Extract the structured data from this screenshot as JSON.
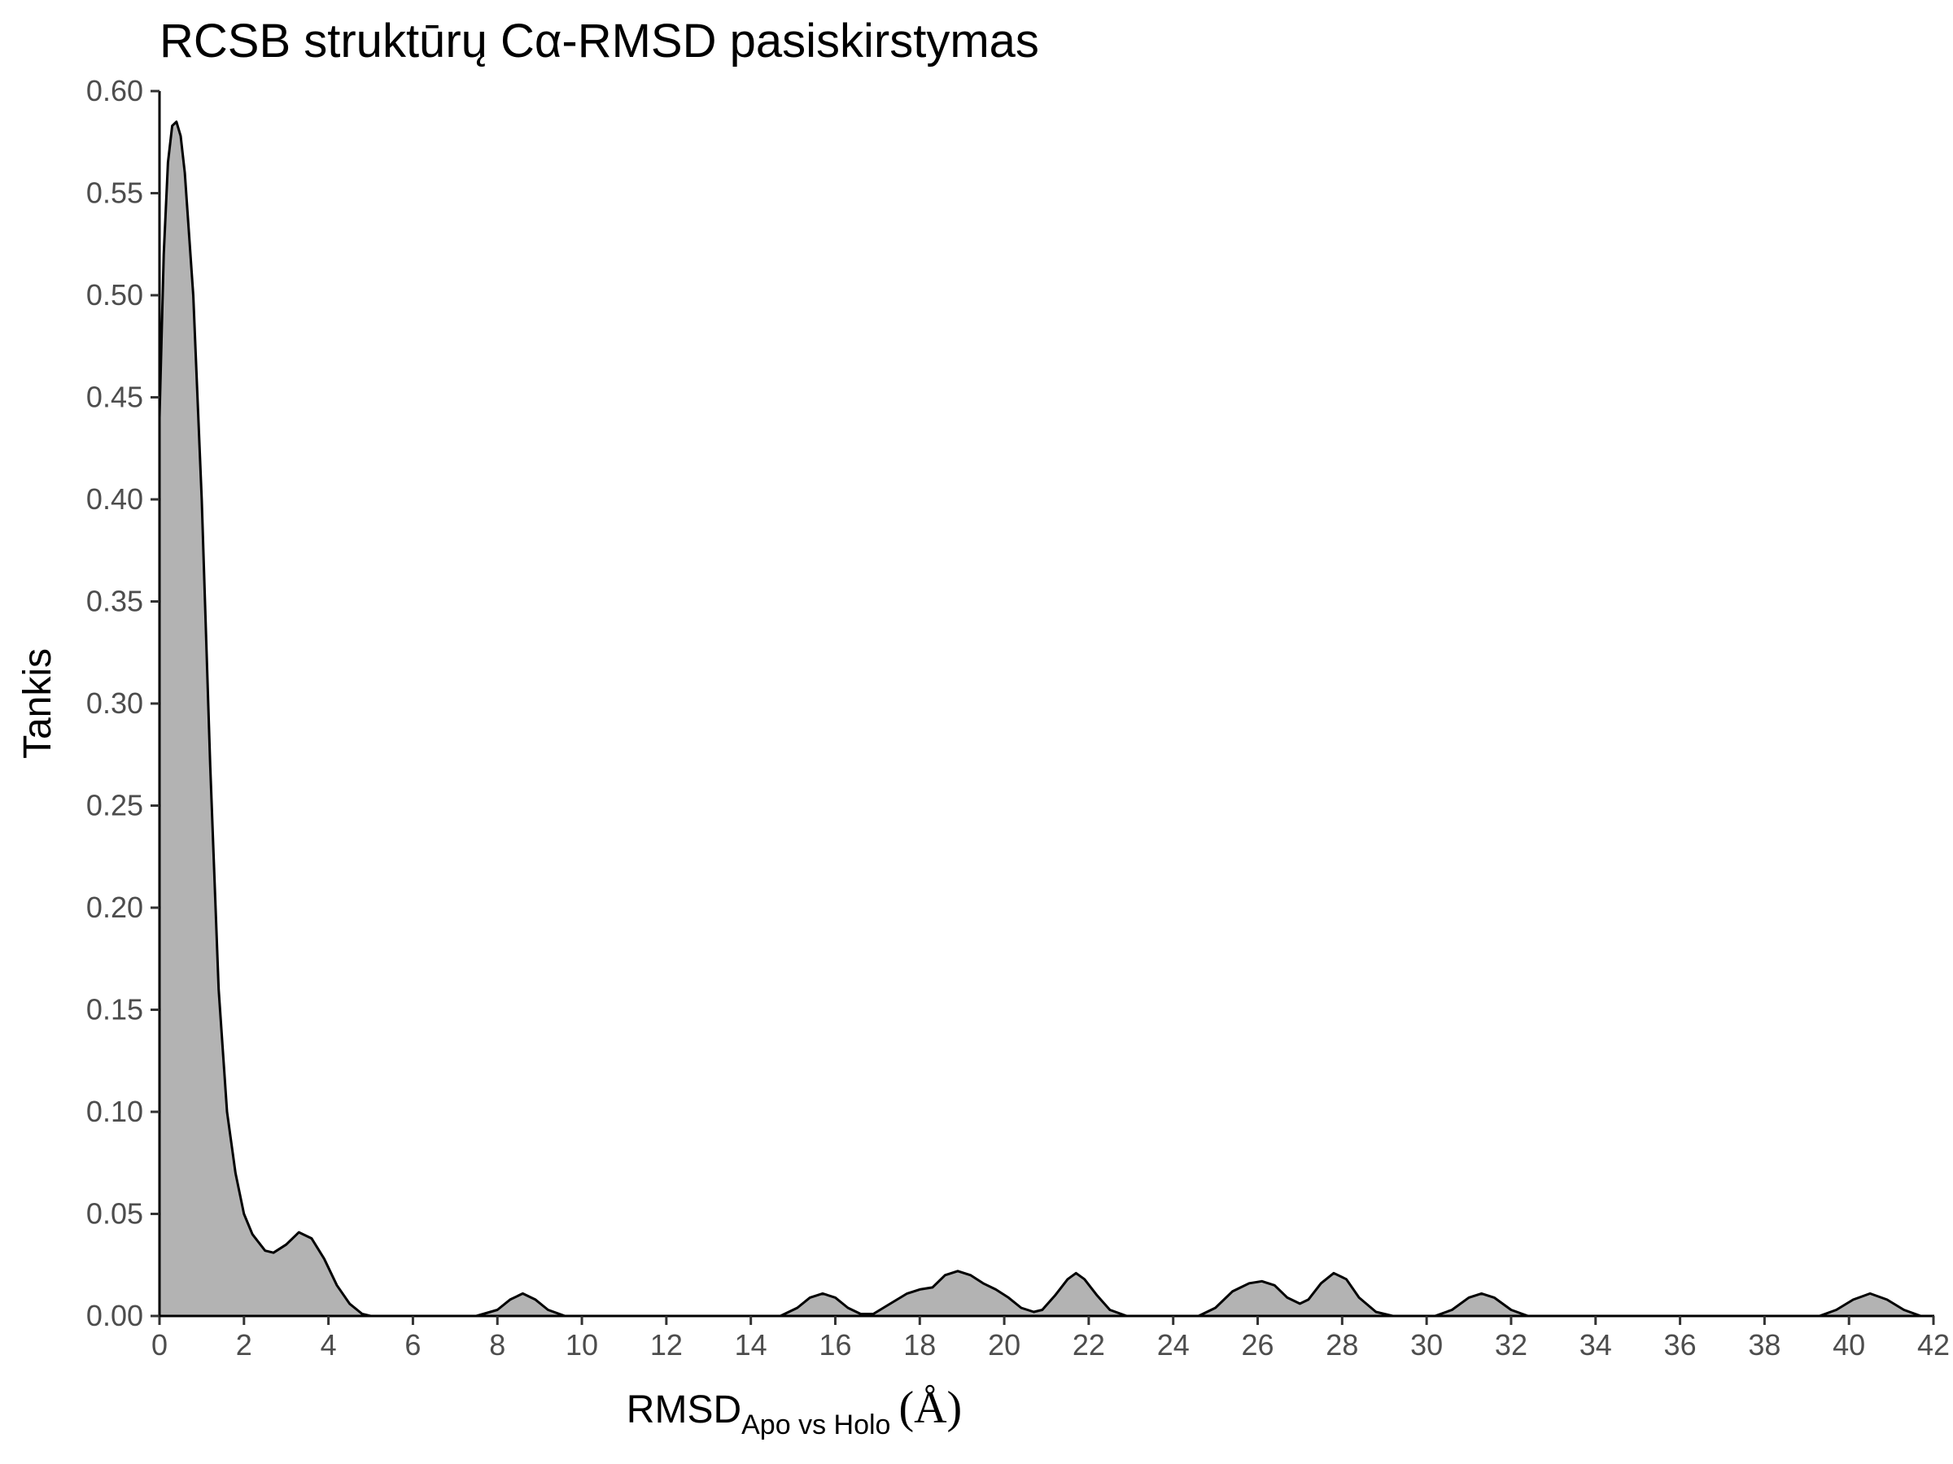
{
  "chart_data": {
    "type": "area",
    "title": "RCSB struktūrų Cα-RMSD pasiskirstymas",
    "xlabel": {
      "main": "RMSD",
      "subscript": "Apo vs Holo",
      "unit": "(Å)"
    },
    "ylabel": "Tankis",
    "xlim": [
      0,
      42
    ],
    "ylim": [
      0,
      0.6
    ],
    "x_ticks": [
      "0",
      "2",
      "4",
      "6",
      "8",
      "10",
      "12",
      "14",
      "16",
      "18",
      "20",
      "22",
      "24",
      "26",
      "28",
      "30",
      "32",
      "34",
      "36",
      "38",
      "40",
      "42"
    ],
    "y_ticks": [
      "0.00",
      "0.05",
      "0.10",
      "0.15",
      "0.20",
      "0.25",
      "0.30",
      "0.35",
      "0.40",
      "0.45",
      "0.50",
      "0.55",
      "0.60"
    ],
    "grid": false,
    "legend": "none",
    "series": [
      {
        "fill_color": "#b3b3b3",
        "line_color": "#000000",
        "points": [
          [
            0.0,
            0.44
          ],
          [
            0.1,
            0.52
          ],
          [
            0.2,
            0.565
          ],
          [
            0.3,
            0.583
          ],
          [
            0.4,
            0.585
          ],
          [
            0.5,
            0.578
          ],
          [
            0.6,
            0.56
          ],
          [
            0.8,
            0.5
          ],
          [
            1.0,
            0.4
          ],
          [
            1.2,
            0.27
          ],
          [
            1.4,
            0.16
          ],
          [
            1.6,
            0.1
          ],
          [
            1.8,
            0.07
          ],
          [
            2.0,
            0.05
          ],
          [
            2.2,
            0.04
          ],
          [
            2.5,
            0.032
          ],
          [
            2.7,
            0.031
          ],
          [
            3.0,
            0.035
          ],
          [
            3.3,
            0.041
          ],
          [
            3.6,
            0.038
          ],
          [
            3.9,
            0.028
          ],
          [
            4.2,
            0.015
          ],
          [
            4.5,
            0.006
          ],
          [
            4.8,
            0.001
          ],
          [
            5.0,
            0.0
          ],
          [
            7.5,
            0.0
          ],
          [
            8.0,
            0.003
          ],
          [
            8.3,
            0.008
          ],
          [
            8.6,
            0.011
          ],
          [
            8.9,
            0.008
          ],
          [
            9.2,
            0.003
          ],
          [
            9.6,
            0.0
          ],
          [
            14.7,
            0.0
          ],
          [
            15.1,
            0.004
          ],
          [
            15.4,
            0.009
          ],
          [
            15.7,
            0.011
          ],
          [
            16.0,
            0.009
          ],
          [
            16.3,
            0.004
          ],
          [
            16.6,
            0.001
          ],
          [
            16.9,
            0.001
          ],
          [
            17.3,
            0.006
          ],
          [
            17.7,
            0.011
          ],
          [
            18.0,
            0.013
          ],
          [
            18.3,
            0.014
          ],
          [
            18.6,
            0.02
          ],
          [
            18.9,
            0.022
          ],
          [
            19.2,
            0.02
          ],
          [
            19.5,
            0.016
          ],
          [
            19.8,
            0.013
          ],
          [
            20.1,
            0.009
          ],
          [
            20.4,
            0.004
          ],
          [
            20.7,
            0.002
          ],
          [
            20.9,
            0.003
          ],
          [
            21.2,
            0.01
          ],
          [
            21.5,
            0.018
          ],
          [
            21.7,
            0.021
          ],
          [
            21.9,
            0.018
          ],
          [
            22.2,
            0.01
          ],
          [
            22.5,
            0.003
          ],
          [
            22.9,
            0.0
          ],
          [
            24.6,
            0.0
          ],
          [
            25.0,
            0.004
          ],
          [
            25.4,
            0.012
          ],
          [
            25.8,
            0.016
          ],
          [
            26.1,
            0.017
          ],
          [
            26.4,
            0.015
          ],
          [
            26.7,
            0.009
          ],
          [
            27.0,
            0.006
          ],
          [
            27.2,
            0.008
          ],
          [
            27.5,
            0.016
          ],
          [
            27.8,
            0.021
          ],
          [
            28.1,
            0.018
          ],
          [
            28.4,
            0.009
          ],
          [
            28.8,
            0.002
          ],
          [
            29.2,
            0.0
          ],
          [
            30.2,
            0.0
          ],
          [
            30.6,
            0.003
          ],
          [
            31.0,
            0.009
          ],
          [
            31.3,
            0.011
          ],
          [
            31.6,
            0.009
          ],
          [
            32.0,
            0.003
          ],
          [
            32.4,
            0.0
          ],
          [
            39.3,
            0.0
          ],
          [
            39.7,
            0.003
          ],
          [
            40.1,
            0.008
          ],
          [
            40.5,
            0.011
          ],
          [
            40.9,
            0.008
          ],
          [
            41.3,
            0.003
          ],
          [
            41.7,
            0.0
          ],
          [
            42.0,
            0.0
          ]
        ]
      }
    ]
  }
}
